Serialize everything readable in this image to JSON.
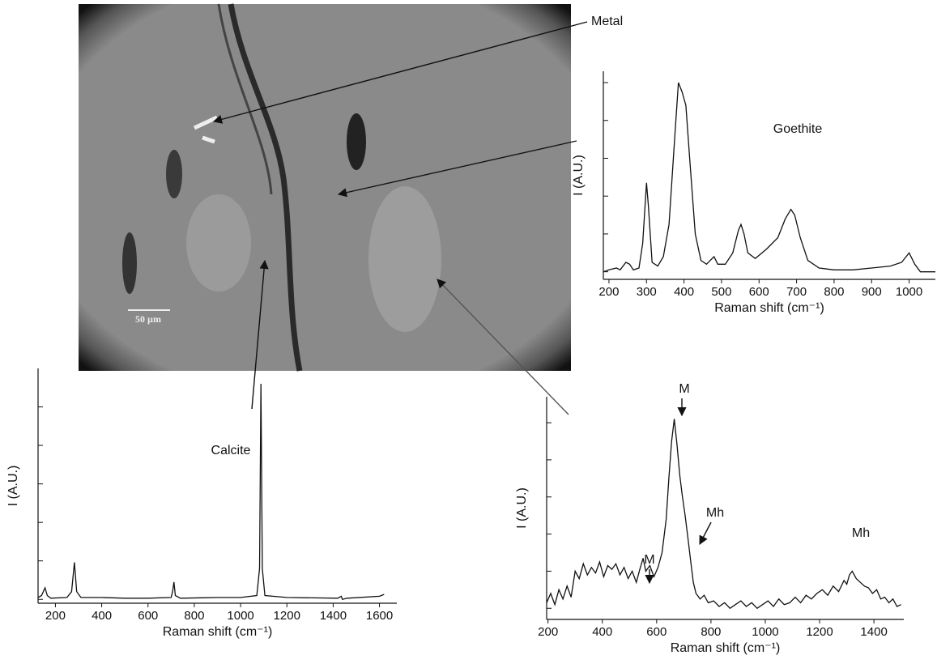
{
  "figure": {
    "scale_bar": "50 µm",
    "label": "Metal"
  },
  "chart_data": [
    {
      "type": "line",
      "label": "Goethite",
      "color": "#111111",
      "xlabel": "Raman shift (cm⁻¹)",
      "ylabel": "I (A.U.)",
      "x": [
        185,
        200,
        220,
        230,
        245,
        255,
        265,
        280,
        290,
        300,
        305,
        315,
        330,
        345,
        360,
        375,
        385,
        395,
        405,
        415,
        430,
        445,
        460,
        470,
        480,
        490,
        510,
        530,
        545,
        552,
        560,
        570,
        590,
        620,
        650,
        670,
        685,
        695,
        710,
        730,
        760,
        800,
        850,
        900,
        950,
        980,
        1000,
        1015,
        1030,
        1070
      ],
      "values": [
        0,
        1,
        2,
        1,
        5,
        4,
        1,
        2,
        15,
        47,
        35,
        5,
        3,
        8,
        25,
        70,
        100,
        95,
        88,
        60,
        20,
        6,
        4,
        6,
        8,
        4,
        4,
        10,
        22,
        25,
        20,
        10,
        7,
        12,
        18,
        28,
        33,
        30,
        18,
        6,
        2,
        1,
        1,
        2,
        3,
        5,
        10,
        4,
        0,
        0
      ],
      "xlim": [
        185,
        1070
      ],
      "xticks": [
        200,
        300,
        400,
        500,
        600,
        700,
        800,
        900,
        1000
      ],
      "ylim": [
        -4,
        106
      ],
      "yticks": [
        0,
        20,
        40,
        60,
        80,
        100
      ],
      "annotations": []
    },
    {
      "type": "line",
      "label": "Calcite",
      "color": "#111111",
      "xlabel": "Raman shift (cm⁻¹)",
      "ylabel": "I (A.U.)",
      "x": [
        125,
        140,
        155,
        165,
        180,
        250,
        270,
        282,
        292,
        310,
        400,
        500,
        600,
        700,
        706,
        712,
        718,
        740,
        900,
        1000,
        1070,
        1082,
        1088,
        1094,
        1105,
        1200,
        1420,
        1435,
        1440,
        1460,
        1600,
        1620
      ],
      "values": [
        0.5,
        1,
        3,
        1,
        0.3,
        0.5,
        2,
        9.6,
        2,
        0.5,
        0.5,
        0.3,
        0.3,
        0.5,
        2,
        4.5,
        1,
        0.3,
        0.5,
        0.5,
        1,
        8,
        56,
        8,
        1,
        0.5,
        0.3,
        0.8,
        0,
        0.3,
        0.8,
        1.3
      ],
      "xlim": [
        125,
        1675
      ],
      "xticks": [
        200,
        400,
        600,
        800,
        1000,
        1200,
        1400,
        1600
      ],
      "ylim": [
        -1,
        60
      ],
      "yticks": [
        0,
        10,
        20,
        30,
        40,
        50
      ],
      "annotations": []
    },
    {
      "type": "line",
      "color": "#111111",
      "xlabel": "Raman shift (cm⁻¹)",
      "ylabel": "I (A.U.)",
      "x": [
        195,
        210,
        225,
        240,
        255,
        270,
        285,
        300,
        315,
        330,
        345,
        360,
        375,
        390,
        405,
        420,
        435,
        450,
        465,
        480,
        495,
        510,
        525,
        540,
        550,
        560,
        575,
        590,
        605,
        620,
        635,
        645,
        655,
        665,
        675,
        685,
        695,
        705,
        715,
        725,
        735,
        745,
        760,
        775,
        790,
        810,
        830,
        850,
        870,
        890,
        910,
        930,
        950,
        970,
        990,
        1010,
        1030,
        1050,
        1070,
        1090,
        1110,
        1130,
        1150,
        1170,
        1190,
        1210,
        1230,
        1250,
        1270,
        1290,
        1300,
        1310,
        1320,
        1335,
        1350,
        1365,
        1380,
        1395,
        1410,
        1425,
        1440,
        1455,
        1470,
        1485,
        1500
      ],
      "values": [
        3,
        8,
        2,
        10,
        5,
        12,
        6,
        20,
        16,
        24,
        18,
        22,
        19,
        25,
        17,
        23,
        21,
        24,
        18,
        22,
        16,
        20,
        14,
        22,
        27,
        20,
        23,
        17,
        22,
        30,
        48,
        70,
        90,
        102,
        88,
        72,
        60,
        50,
        38,
        26,
        14,
        8,
        5,
        7,
        3,
        4,
        1,
        3,
        0,
        2,
        4,
        1,
        3,
        0,
        2,
        4,
        1,
        5,
        2,
        3,
        6,
        3,
        7,
        5,
        8,
        10,
        7,
        12,
        9,
        15,
        13,
        18,
        20,
        16,
        14,
        12,
        11,
        8,
        10,
        5,
        6,
        3,
        5,
        1,
        2
      ],
      "xlim": [
        195,
        1510
      ],
      "xticks": [
        200,
        400,
        600,
        800,
        1000,
        1200,
        1400
      ],
      "ylim": [
        -6,
        114
      ],
      "yticks": [
        0,
        20,
        40,
        60,
        80,
        100
      ],
      "annotations": [
        "M",
        "Mh",
        "M",
        "Mh"
      ]
    }
  ]
}
